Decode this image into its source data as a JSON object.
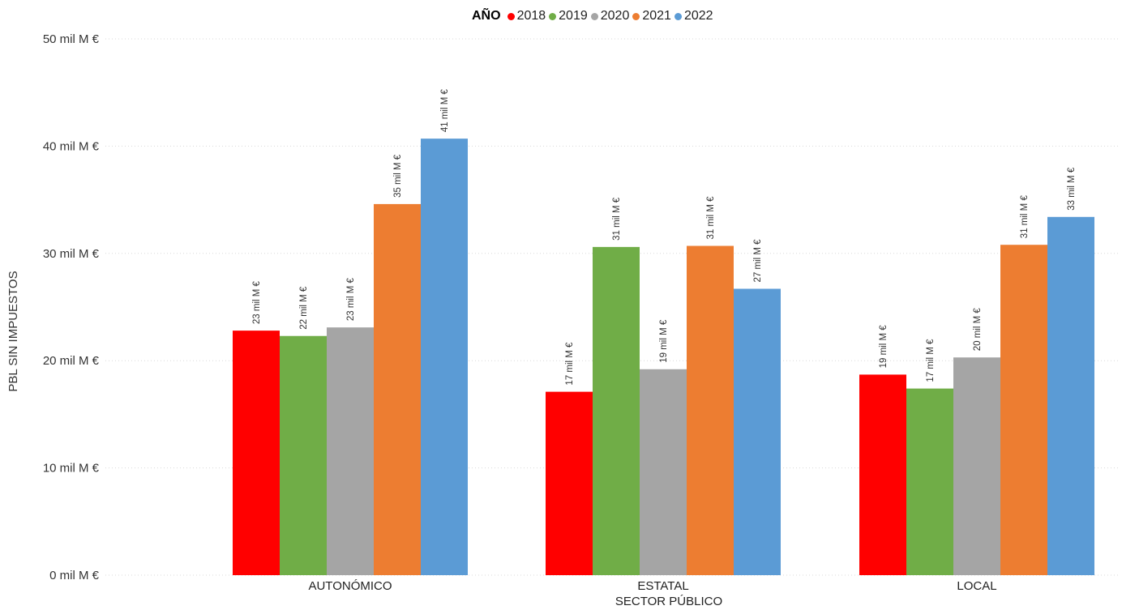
{
  "chart_data": {
    "type": "bar",
    "legend_title": "AÑO",
    "legend_position": "top-center",
    "xlabel": "SECTOR PÚBLICO",
    "ylabel": "PBL SIN IMPUESTOS",
    "ylim": [
      0,
      50
    ],
    "y_ticks": [
      0,
      10,
      20,
      30,
      40,
      50
    ],
    "y_tick_labels": [
      "0 mil M €",
      "10 mil M €",
      "20 mil M €",
      "30 mil M €",
      "40 mil M €",
      "50 mil M €"
    ],
    "grid": true,
    "categories": [
      "AUTONÓMICO",
      "ESTATAL",
      "LOCAL"
    ],
    "series": [
      {
        "name": "2018",
        "color": "#ff0000",
        "values": [
          22.8,
          17.1,
          18.7
        ],
        "labels": [
          "23 mil M €",
          "17 mil M €",
          "19 mil M €"
        ]
      },
      {
        "name": "2019",
        "color": "#70ad47",
        "values": [
          22.3,
          30.6,
          17.4
        ],
        "labels": [
          "22 mil M €",
          "31 mil M €",
          "17 mil M €"
        ]
      },
      {
        "name": "2020",
        "color": "#a5a5a5",
        "values": [
          23.1,
          19.2,
          20.3
        ],
        "labels": [
          "23 mil M €",
          "19 mil M €",
          "20 mil M €"
        ]
      },
      {
        "name": "2021",
        "color": "#ed7d31",
        "values": [
          34.6,
          30.7,
          30.8
        ],
        "labels": [
          "35 mil M €",
          "31 mil M €",
          "31 mil M €"
        ]
      },
      {
        "name": "2022",
        "color": "#5b9bd5",
        "values": [
          40.7,
          26.7,
          33.4
        ],
        "labels": [
          "41 mil M €",
          "27 mil M €",
          "33 mil M €"
        ]
      }
    ]
  }
}
